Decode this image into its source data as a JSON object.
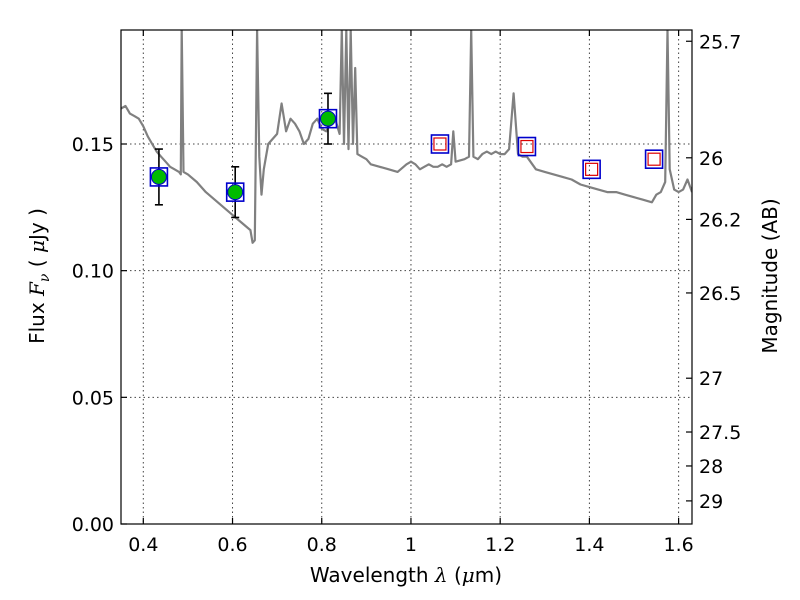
{
  "chart_data": {
    "type": "scatter",
    "title": "",
    "xlabel": "Wavelength  λ (μm)",
    "xlabel_parts": {
      "prefix": "Wavelength  ",
      "symbol": "λ",
      "open": " (",
      "mu": "μ",
      "unit": "m)"
    },
    "ylabel": "Flux  Fν  ( μJy )",
    "ylabel_parts": {
      "prefix": "Flux  ",
      "symbol": "F",
      "sub": "ν",
      "open": "  ( ",
      "mu": "μ",
      "unit": "Jy )"
    },
    "y2label": "Magnitude (AB)",
    "xlim": [
      0.35,
      1.63
    ],
    "ylim": [
      0.0,
      0.195
    ],
    "x_ticks": [
      {
        "value": 0.4,
        "label": "0.4"
      },
      {
        "value": 0.6,
        "label": "0.6"
      },
      {
        "value": 0.8,
        "label": "0.8"
      },
      {
        "value": 1.0,
        "label": "1"
      },
      {
        "value": 1.2,
        "label": "1.2"
      },
      {
        "value": 1.4,
        "label": "1.4"
      },
      {
        "value": 1.6,
        "label": "1.6"
      }
    ],
    "y_ticks": [
      {
        "value": 0.0,
        "label": "0.00"
      },
      {
        "value": 0.05,
        "label": "0.05"
      },
      {
        "value": 0.1,
        "label": "0.10"
      },
      {
        "value": 0.15,
        "label": "0.15"
      }
    ],
    "y2_ticks": [
      {
        "value": 25.7,
        "label": "25.7"
      },
      {
        "value": 26.0,
        "label": "26"
      },
      {
        "value": 26.2,
        "label": "26.2"
      },
      {
        "value": 26.5,
        "label": "26.5"
      },
      {
        "value": 27.0,
        "label": "27"
      },
      {
        "value": 27.5,
        "label": "27.5"
      },
      {
        "value": 28.0,
        "label": "28"
      },
      {
        "value": 29.0,
        "label": "29"
      }
    ],
    "grid": true,
    "observed_points": [
      {
        "x": 0.435,
        "y": 0.137,
        "err": 0.011
      },
      {
        "x": 0.606,
        "y": 0.131,
        "err": 0.01
      },
      {
        "x": 0.814,
        "y": 0.16,
        "err": 0.01
      }
    ],
    "model_photometry": [
      {
        "x": 0.435,
        "y": 0.137
      },
      {
        "x": 0.606,
        "y": 0.131
      },
      {
        "x": 0.814,
        "y": 0.16
      },
      {
        "x": 1.065,
        "y": 0.15
      },
      {
        "x": 1.26,
        "y": 0.149
      },
      {
        "x": 1.405,
        "y": 0.14
      },
      {
        "x": 1.545,
        "y": 0.144
      }
    ],
    "predictions": [
      {
        "x": 1.065,
        "y": 0.15
      },
      {
        "x": 1.26,
        "y": 0.149
      },
      {
        "x": 1.405,
        "y": 0.14
      },
      {
        "x": 1.545,
        "y": 0.144
      }
    ],
    "spectrum": {
      "x": [
        0.35,
        0.36,
        0.37,
        0.38,
        0.39,
        0.4,
        0.41,
        0.42,
        0.43,
        0.44,
        0.45,
        0.46,
        0.47,
        0.48,
        0.484,
        0.486,
        0.49,
        0.5,
        0.52,
        0.54,
        0.56,
        0.58,
        0.6,
        0.62,
        0.64,
        0.645,
        0.65,
        0.655,
        0.66,
        0.665,
        0.67,
        0.68,
        0.7,
        0.71,
        0.72,
        0.73,
        0.74,
        0.75,
        0.76,
        0.77,
        0.78,
        0.79,
        0.8,
        0.81,
        0.82,
        0.83,
        0.84,
        0.845,
        0.85,
        0.855,
        0.86,
        0.865,
        0.87,
        0.875,
        0.88,
        0.89,
        0.9,
        0.91,
        0.93,
        0.95,
        0.97,
        0.99,
        1.0,
        1.01,
        1.02,
        1.03,
        1.04,
        1.05,
        1.06,
        1.07,
        1.08,
        1.09,
        1.095,
        1.1,
        1.12,
        1.13,
        1.135,
        1.14,
        1.15,
        1.16,
        1.17,
        1.18,
        1.19,
        1.2,
        1.21,
        1.22,
        1.23,
        1.24,
        1.25,
        1.26,
        1.28,
        1.3,
        1.32,
        1.34,
        1.36,
        1.38,
        1.4,
        1.42,
        1.44,
        1.46,
        1.48,
        1.5,
        1.52,
        1.54,
        1.55,
        1.56,
        1.57,
        1.575,
        1.58,
        1.59,
        1.6,
        1.61,
        1.62,
        1.63
      ],
      "y": [
        0.164,
        0.165,
        0.162,
        0.161,
        0.16,
        0.157,
        0.153,
        0.15,
        0.147,
        0.145,
        0.143,
        0.141,
        0.14,
        0.139,
        0.138,
        0.196,
        0.139,
        0.138,
        0.135,
        0.131,
        0.128,
        0.125,
        0.122,
        0.119,
        0.116,
        0.111,
        0.112,
        0.195,
        0.145,
        0.13,
        0.14,
        0.15,
        0.154,
        0.166,
        0.155,
        0.16,
        0.158,
        0.155,
        0.15,
        0.152,
        0.158,
        0.16,
        0.156,
        0.155,
        0.158,
        0.16,
        0.154,
        0.195,
        0.15,
        0.195,
        0.148,
        0.195,
        0.15,
        0.18,
        0.146,
        0.145,
        0.144,
        0.142,
        0.141,
        0.14,
        0.139,
        0.142,
        0.143,
        0.142,
        0.14,
        0.141,
        0.142,
        0.141,
        0.141,
        0.142,
        0.141,
        0.142,
        0.155,
        0.143,
        0.144,
        0.145,
        0.195,
        0.145,
        0.144,
        0.146,
        0.147,
        0.146,
        0.147,
        0.146,
        0.146,
        0.148,
        0.17,
        0.146,
        0.145,
        0.145,
        0.14,
        0.139,
        0.138,
        0.137,
        0.136,
        0.134,
        0.133,
        0.132,
        0.131,
        0.131,
        0.13,
        0.129,
        0.128,
        0.127,
        0.13,
        0.131,
        0.135,
        0.195,
        0.14,
        0.132,
        0.131,
        0.132,
        0.136,
        0.131
      ]
    },
    "colors": {
      "spectrum": "#808080",
      "observed_fill": "#00bb00",
      "observed_edge": "#0000cc",
      "error_bar": "#000000",
      "model_box": "#0000cc",
      "prediction_box": "#dd0000",
      "grid": "#444444"
    }
  }
}
